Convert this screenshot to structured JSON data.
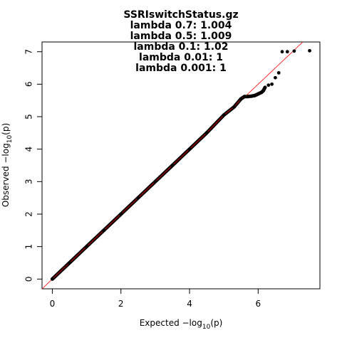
{
  "chart_data": {
    "type": "scatter",
    "title_lines": [
      "SSRIswitchStatus.gz",
      "lambda 0.7: 1.004",
      "lambda 0.5: 1.009",
      "lambda 0.1: 1.02",
      "lambda 0.01: 1",
      "lambda 0.001: 1"
    ],
    "xlabel": {
      "prefix": "Expected  −log",
      "sub": "10",
      "suffix": "(p)"
    },
    "ylabel": {
      "prefix": "Observed  −log",
      "sub": "10",
      "suffix": "(p)"
    },
    "xlim": [
      -0.3,
      7.8
    ],
    "ylim": [
      -0.3,
      7.3
    ],
    "x_ticks": [
      0,
      2,
      4,
      6
    ],
    "y_ticks": [
      0,
      1,
      2,
      3,
      4,
      5,
      6,
      7
    ],
    "reference_line": {
      "slope": 1,
      "intercept": 0,
      "color": "#ff0000"
    },
    "point_color": "#000000",
    "point_trail_color": "#8b0000",
    "grid": false,
    "points": {
      "x": [
        0,
        0.5,
        1,
        1.5,
        2,
        2.5,
        3,
        3.5,
        4,
        4.5,
        5,
        5.3,
        5.5,
        5.6,
        5.7,
        5.8,
        5.9,
        6.0,
        6.1,
        6.15,
        6.2,
        6.3,
        6.4,
        6.5,
        6.6,
        6.7,
        6.85,
        7.05,
        7.5
      ],
      "y": [
        0,
        0.5,
        1,
        1.5,
        2,
        2.5,
        3,
        3.5,
        4,
        4.5,
        5.05,
        5.3,
        5.55,
        5.62,
        5.62,
        5.63,
        5.65,
        5.7,
        5.75,
        5.8,
        5.9,
        5.97,
        6.0,
        6.2,
        6.35,
        7.0,
        7.0,
        7.02,
        7.03
      ]
    }
  }
}
